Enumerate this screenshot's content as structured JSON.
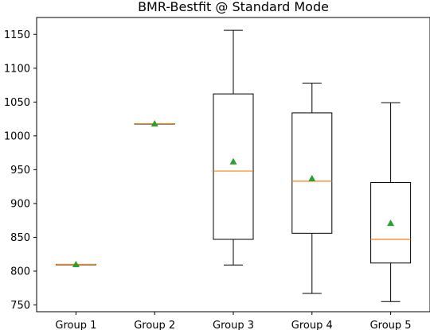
{
  "chart_data": {
    "type": "boxplot",
    "title": "BMR-Bestfit @ Standard Mode",
    "xlabel": "",
    "ylabel": "",
    "ylim": [
      740,
      1175
    ],
    "yticks": [
      750,
      800,
      850,
      900,
      950,
      1000,
      1050,
      1100,
      1150
    ],
    "categories": [
      "Group 1",
      "Group 2",
      "Group 3",
      "Group 4",
      "Group 5"
    ],
    "boxes": [
      {
        "whisker_low": 810,
        "q1": 810,
        "median": 810,
        "q3": 810,
        "whisker_high": 810,
        "mean": 810
      },
      {
        "whisker_low": 1018,
        "q1": 1018,
        "median": 1018,
        "q3": 1018,
        "whisker_high": 1018,
        "mean": 1018
      },
      {
        "whisker_low": 809,
        "q1": 847,
        "median": 948,
        "q3": 1062,
        "whisker_high": 1156,
        "mean": 962
      },
      {
        "whisker_low": 767,
        "q1": 856,
        "median": 933,
        "q3": 1034,
        "whisker_high": 1078,
        "mean": 937
      },
      {
        "whisker_low": 755,
        "q1": 812,
        "median": 847,
        "q3": 931,
        "whisker_high": 1049,
        "mean": 871
      }
    ],
    "colors": {
      "box": "#000000",
      "median": "#ff7f0e",
      "mean": "#2ca02c"
    },
    "grid": false,
    "show_means": true
  }
}
